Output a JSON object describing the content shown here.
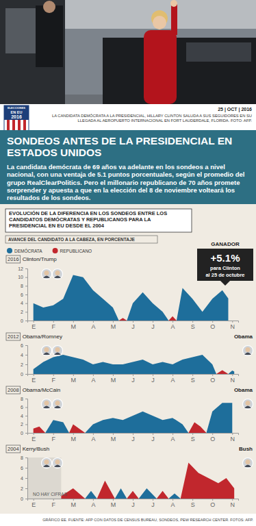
{
  "photo": {
    "date": "25 | OCT | 2016",
    "caption": "LA CANDIDATA DEMÓCRATA A LA PRESIDENCIAL, HILLARY CLINTON SALUDA A SUS SEGUIDORES EN SU LLEGADA AL AEROPUERTO INTERNACIONAL EN FORT LAUDERDALE, FLORIDA. FOTO: AFP."
  },
  "logo": [
    "ELECCIONES",
    "EN EU",
    "2016"
  ],
  "header": {
    "title": "SONDEOS ANTES DE LA PRESIDENCIAL EN ESTADOS UNIDOS",
    "body": "La candidata demócrata de 69 años va adelante en los sondeos a nivel nacional, con una ventaja de 5.1 puntos porcentuales, según el promedio del grupo RealClearPolitics. Pero el millonario republicano de 70 años promete sorprender y apuesta a que en la elección del 8 de noviembre volteará los resultados de los sondeos."
  },
  "section": {
    "title": "EVOLUCIÓN DE LA DIFERENCIA EN LOS SONDEOS ENTRE LOS CANDIDATOS DEMÓCRATAS Y REPUBLICANOS PARA LA PRESIDENCIAL EN EU DESDE EL 2004",
    "axis_note": "AVANCE DEL CANDIDATO A LA CABEZA, EN PORCENTAJE"
  },
  "footer": "GRÁFICO EE. FUENTE: AFP CON DATOS DE CENSUS BUREAU, SONDEOS, PEW RESEARCH CENTER. FOTOS: AFP.",
  "chart_data": [
    {
      "type": "area",
      "subtitle": "2016",
      "title": "Clinton/Trump",
      "legend": "top-left",
      "grid": false,
      "x": [
        0,
        0.5,
        1,
        1.5,
        2,
        2.5,
        3,
        3.5,
        4,
        4.3,
        4.5,
        4.7,
        5,
        5.5,
        6,
        6.5,
        6.8,
        7,
        7.2,
        7.5,
        8,
        8.5,
        9,
        9.5,
        9.8
      ],
      "series": [
        {
          "name": "DEMÓCRATA",
          "color": "#1e6e9b",
          "values": [
            4,
            3,
            3.5,
            5,
            10.5,
            10,
            7,
            5,
            3,
            0,
            null,
            0,
            4,
            6.5,
            4,
            2,
            0,
            null,
            0,
            7.5,
            5,
            2,
            5,
            7,
            5.1
          ]
        },
        {
          "name": "REPUBLICANO",
          "color": "#c1272d",
          "values": [
            null,
            null,
            null,
            null,
            null,
            null,
            null,
            null,
            null,
            0,
            0.6,
            0,
            null,
            null,
            null,
            null,
            0,
            1,
            0,
            null,
            null,
            null,
            null,
            null,
            null
          ]
        }
      ],
      "xlim": [
        -0.3,
        10.3
      ],
      "xticks": [
        {
          "value": 0,
          "label": "E"
        },
        {
          "value": 1,
          "label": "F"
        },
        {
          "value": 2,
          "label": "M"
        },
        {
          "value": 3,
          "label": "A"
        },
        {
          "value": 4,
          "label": "M"
        },
        {
          "value": 5,
          "label": "J"
        },
        {
          "value": 6,
          "label": "J"
        },
        {
          "value": 7,
          "label": "A"
        },
        {
          "value": 8,
          "label": "S"
        },
        {
          "value": 9,
          "label": "O"
        },
        {
          "value": 10,
          "label": "N"
        }
      ],
      "ylim": [
        0,
        12
      ],
      "yticks": [
        0,
        2,
        4,
        6,
        8,
        10,
        12
      ],
      "annotations": [
        {
          "text": "GANADOR"
        },
        {
          "text": "+5.1%"
        },
        {
          "text": "para Clinton"
        },
        {
          "text": "al 25 de octubre"
        }
      ]
    },
    {
      "type": "area",
      "subtitle": "2012",
      "title": "Obama/Romney",
      "grid": false,
      "x": [
        0,
        0.5,
        1,
        1.5,
        2,
        2.5,
        3,
        3.5,
        4,
        4.5,
        5,
        5.5,
        6,
        6.5,
        7,
        7.5,
        8,
        8.5,
        9,
        9.2,
        9.5,
        9.8,
        10,
        10.1
      ],
      "series": [
        {
          "name": "DEMÓCRATA",
          "color": "#1e6e9b",
          "values": [
            1,
            2.5,
            3.5,
            4,
            3.5,
            3,
            2,
            2.5,
            2,
            2,
            2.5,
            3,
            2,
            2.5,
            2,
            3,
            3.5,
            4,
            2,
            0,
            null,
            0,
            0.7,
            0.5
          ]
        },
        {
          "name": "REPUBLICANO",
          "color": "#c1272d",
          "values": [
            null,
            null,
            null,
            null,
            null,
            null,
            null,
            null,
            null,
            null,
            null,
            null,
            null,
            null,
            null,
            null,
            null,
            null,
            null,
            0,
            0.8,
            0,
            null,
            null
          ]
        }
      ],
      "xlim": [
        -0.3,
        10.3
      ],
      "xticks": [
        {
          "value": 0,
          "label": "E"
        },
        {
          "value": 1,
          "label": "F"
        },
        {
          "value": 2,
          "label": "M"
        },
        {
          "value": 3,
          "label": "A"
        },
        {
          "value": 4,
          "label": "M"
        },
        {
          "value": 5,
          "label": "J"
        },
        {
          "value": 6,
          "label": "J"
        },
        {
          "value": 7,
          "label": "A"
        },
        {
          "value": 8,
          "label": "S"
        },
        {
          "value": 9,
          "label": "O"
        },
        {
          "value": 10,
          "label": "N"
        }
      ],
      "ylim": [
        0,
        6
      ],
      "yticks": [
        0,
        2,
        4,
        6
      ],
      "annotations": [
        {
          "text": "Obama"
        }
      ]
    },
    {
      "type": "area",
      "subtitle": "2008",
      "title": "Obama/McCain",
      "grid": false,
      "x": [
        0,
        0.3,
        0.6,
        1,
        1.5,
        1.8,
        2,
        2.3,
        2.6,
        3,
        3.5,
        4,
        4.5,
        5,
        5.5,
        6,
        6.5,
        7,
        7.5,
        7.8,
        8.1,
        8.4,
        8.7,
        9,
        9.5,
        10
      ],
      "series": [
        {
          "name": "DEMÓCRATA",
          "color": "#1e6e9b",
          "values": [
            null,
            null,
            0,
            3,
            2.5,
            0,
            null,
            null,
            0,
            2,
            3,
            3.5,
            3,
            4,
            5,
            4,
            3,
            3.5,
            2,
            0,
            null,
            null,
            0,
            5,
            7,
            7
          ]
        },
        {
          "name": "REPUBLICANO",
          "color": "#c1272d",
          "values": [
            1,
            1.5,
            0,
            null,
            null,
            0,
            2,
            1,
            0,
            null,
            null,
            null,
            null,
            null,
            null,
            null,
            null,
            null,
            null,
            0,
            2.5,
            1.5,
            0,
            null,
            null,
            null
          ]
        }
      ],
      "xlim": [
        -0.3,
        10.3
      ],
      "xticks": [
        {
          "value": 0,
          "label": "E"
        },
        {
          "value": 1,
          "label": "F"
        },
        {
          "value": 2,
          "label": "M"
        },
        {
          "value": 3,
          "label": "A"
        },
        {
          "value": 4,
          "label": "M"
        },
        {
          "value": 5,
          "label": "J"
        },
        {
          "value": 6,
          "label": "J"
        },
        {
          "value": 7,
          "label": "A"
        },
        {
          "value": 8,
          "label": "S"
        },
        {
          "value": 9,
          "label": "O"
        },
        {
          "value": 10,
          "label": "N"
        }
      ],
      "ylim": [
        0,
        8
      ],
      "yticks": [
        0,
        2,
        4,
        6,
        8
      ],
      "annotations": [
        {
          "text": "Obama"
        }
      ]
    },
    {
      "type": "area",
      "subtitle": "2004",
      "title": "Kerry/Bush",
      "grid": false,
      "x": [
        1.4,
        2,
        2.6,
        2.9,
        3.2,
        3.6,
        4.1,
        4.4,
        4.7,
        5,
        5.3,
        5.7,
        6.2,
        6.5,
        6.8,
        7.1,
        7.4,
        7.8,
        8.3,
        8.8,
        9.3,
        9.7,
        10.1
      ],
      "series": [
        {
          "name": "DEMÓCRATA",
          "color": "#1e6e9b",
          "values": [
            null,
            null,
            0,
            1.5,
            0,
            null,
            0,
            2,
            0,
            null,
            0,
            2,
            0,
            null,
            0,
            1,
            0,
            null,
            null,
            null,
            null,
            null,
            null
          ]
        },
        {
          "name": "REPUBLICANO",
          "color": "#c1272d",
          "values": [
            0.5,
            2,
            0,
            null,
            0,
            3.5,
            0,
            null,
            0,
            1.5,
            0,
            null,
            0,
            1.5,
            0,
            null,
            0,
            7,
            5,
            4,
            3,
            4,
            2
          ]
        }
      ],
      "xlim": [
        -0.3,
        10.3
      ],
      "xticks": [
        {
          "value": 0,
          "label": "E"
        },
        {
          "value": 1,
          "label": "F"
        },
        {
          "value": 2,
          "label": "M"
        },
        {
          "value": 3,
          "label": "A"
        },
        {
          "value": 4,
          "label": "M"
        },
        {
          "value": 5,
          "label": "J"
        },
        {
          "value": 6,
          "label": "J"
        },
        {
          "value": 7,
          "label": "A"
        },
        {
          "value": 8,
          "label": "S"
        },
        {
          "value": 9,
          "label": "O"
        },
        {
          "value": 10,
          "label": "N"
        }
      ],
      "ylim": [
        0,
        8
      ],
      "yticks": [
        0,
        2,
        4,
        6,
        8
      ],
      "annotations": [
        {
          "text": "NO HAY CIFRAS",
          "x0": -0.3,
          "x1": 1.4
        },
        {
          "text": "Bush"
        }
      ]
    }
  ]
}
